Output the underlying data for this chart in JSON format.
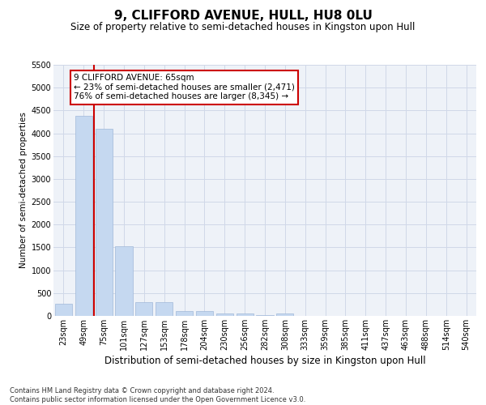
{
  "title": "9, CLIFFORD AVENUE, HULL, HU8 0LU",
  "subtitle": "Size of property relative to semi-detached houses in Kingston upon Hull",
  "xlabel": "Distribution of semi-detached houses by size in Kingston upon Hull",
  "ylabel": "Number of semi-detached properties",
  "footnote": "Contains HM Land Registry data © Crown copyright and database right 2024.\nContains public sector information licensed under the Open Government Licence v3.0.",
  "categories": [
    "23sqm",
    "49sqm",
    "75sqm",
    "101sqm",
    "127sqm",
    "153sqm",
    "178sqm",
    "204sqm",
    "230sqm",
    "256sqm",
    "282sqm",
    "308sqm",
    "333sqm",
    "359sqm",
    "385sqm",
    "411sqm",
    "437sqm",
    "463sqm",
    "488sqm",
    "514sqm",
    "540sqm"
  ],
  "values": [
    270,
    4380,
    4100,
    1530,
    310,
    310,
    100,
    100,
    55,
    55,
    10,
    55,
    0,
    0,
    0,
    0,
    0,
    0,
    0,
    0,
    0
  ],
  "bar_color": "#c5d8f0",
  "bar_edge_color": "#a0b8d8",
  "vline_x": 1.5,
  "vline_color": "#cc0000",
  "annotation_text": "9 CLIFFORD AVENUE: 65sqm\n← 23% of semi-detached houses are smaller (2,471)\n76% of semi-detached houses are larger (8,345) →",
  "annotation_box_color": "#cc0000",
  "ylim": [
    0,
    5500
  ],
  "yticks": [
    0,
    500,
    1000,
    1500,
    2000,
    2500,
    3000,
    3500,
    4000,
    4500,
    5000,
    5500
  ],
  "grid_color": "#d0d8e8",
  "background_color": "#eef2f8",
  "title_fontsize": 11,
  "subtitle_fontsize": 8.5,
  "xlabel_fontsize": 8.5,
  "ylabel_fontsize": 7.5,
  "tick_fontsize": 7,
  "annotation_fontsize": 7.5,
  "footnote_fontsize": 6
}
